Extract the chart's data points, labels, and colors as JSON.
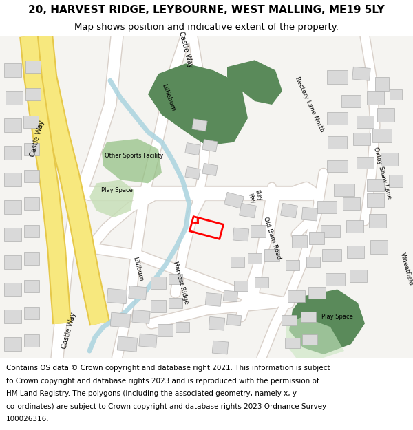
{
  "title_line1": "20, HARVEST RIDGE, LEYBOURNE, WEST MALLING, ME19 5LY",
  "title_line2": "Map shows position and indicative extent of the property.",
  "copyright_lines": [
    "Contains OS data © Crown copyright and database right 2021. This information is subject",
    "to Crown copyright and database rights 2023 and is reproduced with the permission of",
    "HM Land Registry. The polygons (including the associated geometry, namely x, y",
    "co-ordinates) are subject to Crown copyright and database rights 2023 Ordnance Survey",
    "100026316."
  ],
  "bg_color": "#ffffff",
  "map_bg": "#f5f4f1",
  "road_color": "#ffffff",
  "road_outline": "#d9d0c9",
  "building_color": "#d9d9d9",
  "building_outline": "#b0b0b0",
  "green_dark": "#5a8a5a",
  "green_light": "#8fbf7f",
  "green_pale": "#c8e6c0",
  "blue_color": "#aad3df",
  "yellow_road": "#f7e87e",
  "yellow_road_outline": "#e6c84a",
  "plot_color": "#ff0000",
  "title_fontsize": 11,
  "subtitle_fontsize": 9.5,
  "copyright_fontsize": 7.5,
  "label_fontsize": 6.5
}
